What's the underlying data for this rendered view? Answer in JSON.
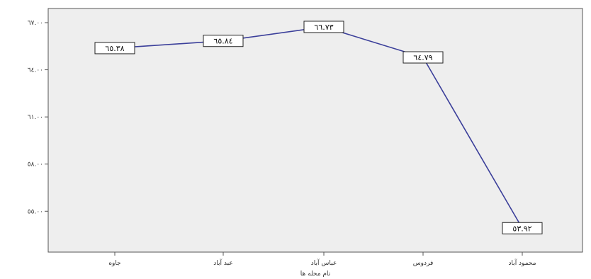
{
  "chart_data": {
    "type": "line",
    "title": "",
    "xlabel": "نام محله ها",
    "ylabel": "",
    "categories": [
      "جاوه",
      "عبد آباد",
      "عباس آباد",
      "فردوس",
      "محمود آباد"
    ],
    "series": [
      {
        "values": [
          65.38,
          65.84,
          66.73,
          64.79,
          53.92
        ],
        "data_labels": [
          "٦٥.٣٨",
          "٦٥.٨٤",
          "٦٦.٧٣",
          "٦٤.٧٩",
          "٥٣.٩٢"
        ],
        "color": "#3b3f9a"
      }
    ],
    "yticks": [
      55,
      58,
      61,
      64,
      67
    ],
    "ytick_labels": [
      "٥٥.٠٠",
      "٥٨.٠٠",
      "٦١.٠٠",
      "٦٤.٠٠",
      "٦٧.٠٠"
    ],
    "ylim": [
      52.4,
      67.9
    ],
    "grid": false,
    "legend": "none",
    "colors": {
      "plot_background": "#eeeeee",
      "line": "#3b3f9a"
    }
  }
}
